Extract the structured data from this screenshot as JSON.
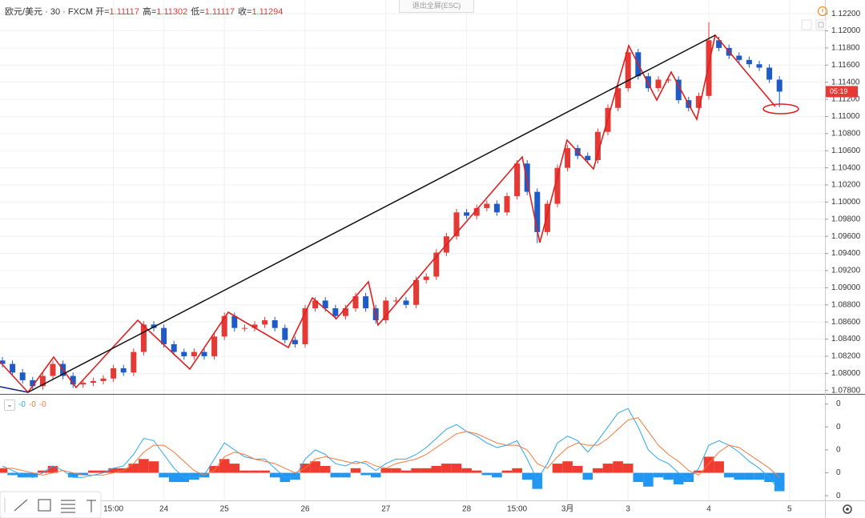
{
  "header": {
    "symbol": "欧元/美元 · 30 · FXCM",
    "ohlc": [
      {
        "label": "开=",
        "value": "1.11117"
      },
      {
        "label": "高=",
        "value": "1.11302"
      },
      {
        "label": "低=",
        "value": "1.11117"
      },
      {
        "label": "收=",
        "value": "1.11294"
      }
    ]
  },
  "exit_fullscreen": "退出全屏(ESC)",
  "countdown": "05:19",
  "chart_data": [
    {
      "type": "candlestick",
      "up_color": "#e53935",
      "down_color": "#1e5bc6",
      "grid": true,
      "categories": [
        null,
        null,
        null,
        null,
        null,
        null,
        null,
        null,
        null,
        null,
        null,
        "15:00",
        null,
        null,
        null,
        null,
        "24",
        null,
        null,
        null,
        null,
        null,
        "25",
        null,
        null,
        null,
        null,
        null,
        null,
        null,
        "26",
        null,
        null,
        null,
        null,
        null,
        null,
        null,
        "27",
        null,
        null,
        null,
        null,
        null,
        null,
        null,
        "28",
        null,
        null,
        null,
        null,
        "15:00",
        null,
        null,
        null,
        null,
        "3月",
        null,
        null,
        null,
        null,
        null,
        "3",
        null,
        null,
        null,
        null,
        null,
        null,
        null,
        "4",
        null,
        null,
        null,
        null,
        null,
        null,
        null,
        "5"
      ],
      "open": [
        1.0815,
        1.0811,
        1.0801,
        1.0792,
        1.0785,
        1.0797,
        1.0811,
        1.0797,
        1.0787,
        1.0789,
        1.0791,
        1.0794,
        1.0806,
        1.0801,
        1.0825,
        1.0857,
        1.0853,
        1.0834,
        1.0825,
        1.082,
        1.0825,
        1.082,
        1.0843,
        1.0867,
        1.0853,
        1.0853,
        1.0857,
        1.0862,
        1.0853,
        1.0839,
        1.0834,
        1.0876,
        1.0885,
        1.0876,
        1.0867,
        1.0876,
        1.089,
        1.0876,
        1.0862,
        1.0885,
        1.0885,
        1.088,
        1.0909,
        1.0913,
        1.0941,
        1.096,
        1.0988,
        1.0984,
        1.0993,
        1.0998,
        1.0988,
        1.1007,
        1.1045,
        1.1012,
        1.0965,
        1.0998,
        1.104,
        1.1063,
        1.1054,
        1.1049,
        1.1082,
        1.111,
        1.1133,
        1.1175,
        1.1147,
        1.1133,
        1.1143,
        1.1143,
        1.1119,
        1.111,
        1.1124,
        1.1189,
        1.118,
        1.1171,
        1.1166,
        1.1161,
        1.1157,
        1.1143,
        null
      ],
      "high": [
        1.0819,
        1.0815,
        1.0805,
        1.0796,
        1.0801,
        1.0815,
        1.0815,
        1.0801,
        1.0793,
        1.0795,
        1.0798,
        1.081,
        1.081,
        1.0829,
        1.0861,
        1.0861,
        1.0857,
        1.0838,
        1.0829,
        1.0829,
        1.0829,
        1.0847,
        1.0871,
        1.0871,
        1.0857,
        1.0861,
        1.0866,
        1.0866,
        1.0857,
        1.0843,
        1.088,
        1.0889,
        1.0889,
        1.088,
        1.088,
        1.0894,
        1.0894,
        1.088,
        1.0889,
        1.0889,
        1.0889,
        1.0913,
        1.0917,
        1.0945,
        1.0964,
        1.0992,
        1.0992,
        1.0997,
        1.1002,
        1.1002,
        1.1011,
        1.1049,
        1.1049,
        1.1016,
        1.1002,
        1.1044,
        1.1067,
        1.1067,
        1.1058,
        1.1086,
        1.1114,
        1.1137,
        1.1179,
        1.1179,
        1.1151,
        1.1147,
        1.1147,
        1.1147,
        1.1123,
        1.1128,
        1.121,
        1.1193,
        1.1184,
        1.1175,
        1.117,
        1.1165,
        1.1161,
        1.1147,
        null
      ],
      "low": [
        1.0807,
        1.0797,
        1.0788,
        1.0781,
        1.0781,
        1.0793,
        1.0793,
        1.0783,
        1.0783,
        1.0785,
        1.0787,
        1.079,
        1.0797,
        1.0797,
        1.0821,
        1.0849,
        1.083,
        1.0821,
        1.0816,
        1.0816,
        1.0816,
        1.0816,
        1.0839,
        1.0849,
        1.0849,
        1.0849,
        1.0853,
        1.0849,
        1.0835,
        1.083,
        1.083,
        1.0872,
        1.0872,
        1.0863,
        1.0863,
        1.0872,
        1.0872,
        1.0858,
        1.0858,
        1.0881,
        1.0876,
        1.0876,
        1.0905,
        1.0909,
        1.0937,
        1.0956,
        1.098,
        1.098,
        1.0989,
        1.0984,
        1.0984,
        1.1003,
        1.1008,
        1.0952,
        1.0961,
        1.0994,
        1.1036,
        1.105,
        1.1045,
        1.1045,
        1.1078,
        1.1106,
        1.1129,
        1.1143,
        1.1129,
        1.1129,
        1.1139,
        1.1115,
        1.1106,
        1.1106,
        1.112,
        1.1176,
        1.1167,
        1.1162,
        1.1157,
        1.1153,
        1.1139,
        1.1111,
        null
      ],
      "close": [
        1.0811,
        1.0801,
        1.0792,
        1.0785,
        1.0797,
        1.0811,
        1.0797,
        1.0787,
        1.0789,
        1.0791,
        1.0794,
        1.0806,
        1.0801,
        1.0825,
        1.0857,
        1.0853,
        1.0834,
        1.0825,
        1.082,
        1.0825,
        1.082,
        1.0843,
        1.0867,
        1.0853,
        1.0853,
        1.0857,
        1.0862,
        1.0853,
        1.0839,
        1.0834,
        1.0876,
        1.0885,
        1.0876,
        1.0867,
        1.0876,
        1.089,
        1.0876,
        1.0862,
        1.0885,
        1.0885,
        1.088,
        1.0909,
        1.0913,
        1.0941,
        1.096,
        1.0988,
        1.0984,
        1.0993,
        1.0998,
        1.0988,
        1.1007,
        1.1045,
        1.1012,
        1.0965,
        1.0998,
        1.104,
        1.1063,
        1.1054,
        1.1049,
        1.1082,
        1.111,
        1.1133,
        1.1175,
        1.1147,
        1.1133,
        1.1143,
        1.1143,
        1.1119,
        1.111,
        1.1124,
        1.1189,
        1.118,
        1.1171,
        1.1166,
        1.1161,
        1.1157,
        1.1143,
        1.1129,
        null
      ],
      "ylim": [
        1.0776,
        1.1236
      ],
      "yticks": [
        {
          "value": 1.078,
          "label": "1.07800"
        },
        {
          "value": 1.08,
          "label": "1.08000"
        },
        {
          "value": 1.082,
          "label": "1.08200"
        },
        {
          "value": 1.084,
          "label": "1.08400"
        },
        {
          "value": 1.086,
          "label": "1.08600"
        },
        {
          "value": 1.088,
          "label": "1.08800"
        },
        {
          "value": 1.09,
          "label": "1.09000"
        },
        {
          "value": 1.092,
          "label": "1.09200"
        },
        {
          "value": 1.094,
          "label": "1.09400"
        },
        {
          "value": 1.096,
          "label": "1.09600"
        },
        {
          "value": 1.098,
          "label": "1.09800"
        },
        {
          "value": 1.1,
          "label": "1.10000"
        },
        {
          "value": 1.102,
          "label": "1.10200"
        },
        {
          "value": 1.104,
          "label": "1.10400"
        },
        {
          "value": 1.106,
          "label": "1.10600"
        },
        {
          "value": 1.108,
          "label": "1.10800"
        },
        {
          "value": 1.11,
          "label": "1.11000"
        },
        {
          "value": 1.112,
          "label": "1.11200"
        },
        {
          "value": 1.114,
          "label": "1.11400"
        },
        {
          "value": 1.116,
          "label": "1.11600"
        },
        {
          "value": 1.118,
          "label": "1.11800"
        },
        {
          "value": 1.12,
          "label": "1.12000"
        },
        {
          "value": 1.122,
          "label": "1.12200"
        }
      ]
    },
    {
      "type": "oscillator",
      "legend_values": [
        "-0",
        "-0",
        "-0"
      ],
      "histogram": {
        "positive_color": "#ef3b30",
        "negative_color": "#2196f3",
        "values": [
          0.0002,
          -0.0001,
          -0.0002,
          -0.0002,
          0.0001,
          0.0003,
          0.0,
          -0.0002,
          -0.0001,
          0.0001,
          0.0001,
          0.0002,
          0.0002,
          0.0004,
          0.0006,
          0.0005,
          -0.0002,
          -0.0004,
          -0.0004,
          -0.0003,
          -0.0002,
          0.0003,
          0.0006,
          0.0004,
          0.0001,
          0.0001,
          0.0001,
          -0.0002,
          -0.0004,
          -0.0003,
          0.0004,
          0.0005,
          0.0003,
          -0.0002,
          -0.0002,
          0.0002,
          -0.0001,
          -0.0002,
          0.0002,
          0.0002,
          0.0001,
          0.0002,
          0.0002,
          0.0003,
          0.0004,
          0.0004,
          0.0002,
          0.0001,
          -0.0001,
          -0.0002,
          0.0001,
          0.0002,
          -0.0003,
          -0.0007,
          0.0,
          0.0004,
          0.0005,
          0.0003,
          -0.0003,
          0.0002,
          0.0004,
          0.0005,
          0.0004,
          -0.0004,
          -0.0006,
          -0.0002,
          -0.0003,
          -0.0005,
          -0.0004,
          0.0001,
          0.0007,
          0.0005,
          -0.0002,
          -0.0003,
          -0.0003,
          -0.0003,
          -0.0004,
          -0.0008
        ]
      },
      "series": [
        {
          "color": "#2ea6f3",
          "values": [
            0.0003,
            0.0001,
            -0.0001,
            -0.0002,
            0.0,
            0.0003,
            0.0001,
            -0.0002,
            -0.0002,
            -0.0001,
            0.0,
            0.0002,
            0.0003,
            0.0008,
            0.0015,
            0.0014,
            0.0008,
            0.0002,
            -0.0002,
            -0.0002,
            -0.0001,
            0.0006,
            0.0013,
            0.001,
            0.0007,
            0.0006,
            0.0006,
            0.0002,
            -0.0002,
            -0.0002,
            0.0006,
            0.001,
            0.0008,
            0.0004,
            0.0003,
            0.0005,
            0.0004,
            0.0001,
            0.0004,
            0.0006,
            0.0006,
            0.0008,
            0.0011,
            0.0015,
            0.0019,
            0.0021,
            0.0018,
            0.0016,
            0.0013,
            0.0011,
            0.0012,
            0.0014,
            0.0006,
            -0.0003,
            0.0004,
            0.0013,
            0.0016,
            0.0014,
            0.0009,
            0.0014,
            0.002,
            0.0026,
            0.0028,
            0.002,
            0.001,
            0.0006,
            0.0004,
            0.0,
            -0.0003,
            0.0002,
            0.0012,
            0.0014,
            0.0012,
            0.0009,
            0.0005,
            0.0002,
            -0.0002,
            -0.0008
          ]
        },
        {
          "color": "#f5793a",
          "values": [
            0.0002,
            0.0002,
            0.0001,
            0.0,
            -0.0001,
            0.0,
            0.0001,
            0.0,
            -0.0001,
            -0.0001,
            -0.0001,
            0.0,
            0.0001,
            0.0004,
            0.0009,
            0.0012,
            0.0012,
            0.0009,
            0.0005,
            0.0001,
            -0.0001,
            0.0001,
            0.0007,
            0.0009,
            0.0008,
            0.0006,
            0.0005,
            0.0004,
            0.0002,
            0.0,
            0.0002,
            0.0006,
            0.0007,
            0.0006,
            0.0005,
            0.0004,
            0.0005,
            0.0003,
            0.0002,
            0.0004,
            0.0005,
            0.0006,
            0.0008,
            0.0011,
            0.0014,
            0.0017,
            0.0018,
            0.0017,
            0.0015,
            0.0013,
            0.0012,
            0.0012,
            0.001,
            0.0004,
            0.0002,
            0.0007,
            0.0011,
            0.0013,
            0.0012,
            0.0012,
            0.0015,
            0.0019,
            0.0023,
            0.0024,
            0.0018,
            0.0012,
            0.0008,
            0.0005,
            0.0001,
            -0.0001,
            0.0004,
            0.0009,
            0.0012,
            0.0011,
            0.0008,
            0.0005,
            0.0002,
            -0.0002
          ]
        }
      ],
      "ylim": [
        -0.0012,
        0.0034
      ],
      "yticks": [
        {
          "value": 0.003,
          "label": "0"
        },
        {
          "value": 0.002,
          "label": "0"
        },
        {
          "value": 0.001,
          "label": "0"
        },
        {
          "value": 0,
          "label": "0"
        },
        {
          "value": -0.001,
          "label": "0"
        }
      ]
    }
  ]
}
